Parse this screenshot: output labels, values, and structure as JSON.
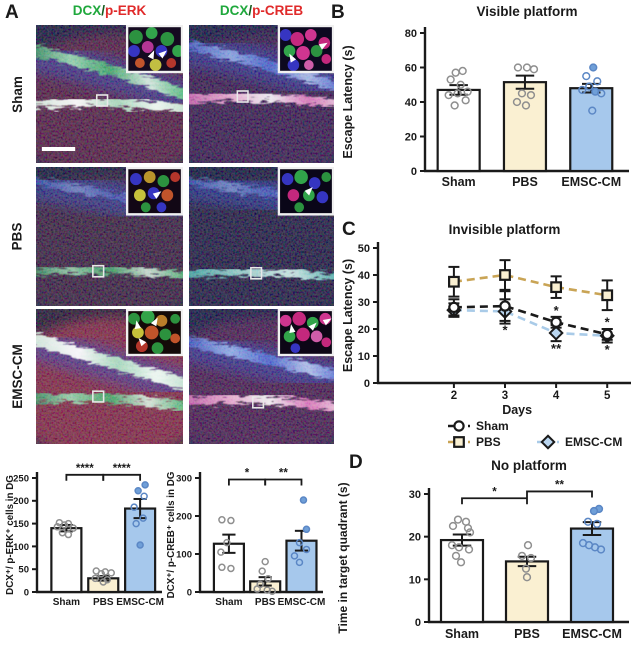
{
  "panel_a": {
    "label": "A",
    "columns": [
      {
        "green": "DCX",
        "slash": "/",
        "red": "p-ERK"
      },
      {
        "green": "DCX",
        "slash": "/",
        "red": "p-CREB"
      }
    ],
    "rows": [
      "Sham",
      "PBS",
      "EMSC-CM"
    ],
    "tiles": [
      {
        "id": "micrograph-sham-dcx-perk"
      },
      {
        "id": "micrograph-sham-dcx-pcreb"
      },
      {
        "id": "micrograph-pbs-dcx-perk"
      },
      {
        "id": "micrograph-pbs-dcx-pcreb"
      },
      {
        "id": "micrograph-emsccm-dcx-perk"
      },
      {
        "id": "micrograph-emsccm-dcx-pcreb"
      }
    ],
    "stain_colors": {
      "dcx_green": "#1FA83C",
      "stain_red": "#E02A2A"
    }
  },
  "panel_labels": {
    "b": "B",
    "c": "C",
    "d": "D"
  },
  "palette": {
    "sham_bar": "#FFFFFF",
    "pbs_bar": "#FAF0D2",
    "emsc_bar": "#A6C8EC",
    "gray_dot": "#8f8f8f",
    "blue_dot": "#5b87c5",
    "pbs_line": "#C9A455",
    "emsc_line": "#A9CBE8",
    "black": "#1a1a1a"
  },
  "chart_data": [
    {
      "id": "visible_platform",
      "type": "bar",
      "title": "Visible platform",
      "ylabel": "Escape Latency (s)",
      "ylim": [
        0,
        80
      ],
      "yticks": [
        0,
        20,
        40,
        60,
        80
      ],
      "categories": [
        "Sham",
        "PBS",
        "EMSC-CM"
      ],
      "values": [
        47,
        51.5,
        48
      ],
      "errors": [
        2.8,
        3.8,
        2.5
      ],
      "bar_colors": [
        "#FFFFFF",
        "#FAF0D2",
        "#A6C8EC"
      ],
      "dot_colors": [
        "#8f8f8f",
        "#8f8f8f",
        "#5b87c5"
      ],
      "dots": [
        [
          [
            58,
            4
          ],
          [
            57,
            -3
          ],
          [
            53,
            -8
          ],
          [
            50,
            2
          ],
          [
            46,
            9
          ],
          [
            45,
            -1
          ],
          [
            44,
            -10
          ],
          [
            41,
            7
          ],
          [
            38,
            -4
          ]
        ],
        [
          [
            60,
            -7
          ],
          [
            60,
            2
          ],
          [
            59,
            9
          ],
          [
            45,
            -3
          ],
          [
            44,
            6
          ],
          [
            40,
            -8
          ],
          [
            38,
            1
          ]
        ],
        [
          [
            60,
            2,
            1
          ],
          [
            55,
            -5
          ],
          [
            52,
            6
          ],
          [
            49,
            -2
          ],
          [
            47,
            -9
          ],
          [
            46,
            4,
            1
          ],
          [
            45,
            10
          ],
          [
            35,
            1
          ]
        ]
      ],
      "sig": []
    },
    {
      "id": "invisible_platform",
      "type": "line",
      "title": "Invisible platform",
      "xlabel": "Days",
      "ylabel": "Escape Latency (s)",
      "x": [
        2,
        3,
        4,
        5
      ],
      "ylim": [
        0,
        50
      ],
      "yticks": [
        0,
        10,
        20,
        30,
        40,
        50
      ],
      "series": [
        {
          "name": "Sham",
          "marker": "circle",
          "color": "#1a1a1a",
          "marker_fill": "#FFFFFF",
          "values": [
            28,
            28.5,
            22.5,
            18
          ],
          "errors": [
            3,
            5.5,
            2,
            2
          ]
        },
        {
          "name": "PBS",
          "marker": "square",
          "color": "#C9A455",
          "marker_fill": "#FAF0D2",
          "values": [
            37.5,
            40,
            35.5,
            32.5
          ],
          "errors": [
            5.5,
            5.5,
            4,
            5.5
          ]
        },
        {
          "name": "EMSC-CM",
          "marker": "diamond",
          "color": "#A9CBE8",
          "marker_fill": "#B9D5EF",
          "values": [
            27,
            26.5,
            18.5,
            17.5
          ],
          "errors": [
            2.5,
            4.5,
            3,
            2.5
          ]
        }
      ],
      "annotations": [
        {
          "x": 3,
          "y": 19.5,
          "text": "*"
        },
        {
          "x": 4,
          "y": 26.6,
          "text": "*"
        },
        {
          "x": 4,
          "y": 12.6,
          "text": "**"
        },
        {
          "x": 5,
          "y": 22.4,
          "text": "*"
        },
        {
          "x": 5,
          "y": 12.2,
          "text": "*"
        }
      ],
      "legend": [
        "Sham",
        "PBS",
        "EMSC-CM"
      ]
    },
    {
      "id": "no_platform",
      "type": "bar",
      "title": "No platform",
      "ylabel": "Time in target quadrant (s)",
      "ylim": [
        0,
        30
      ],
      "yticks": [
        0,
        10,
        20,
        30
      ],
      "categories": [
        "Sham",
        "PBS",
        "EMSC-CM"
      ],
      "values": [
        19.2,
        14.2,
        21.9
      ],
      "errors": [
        1.3,
        1.1,
        1.5
      ],
      "bar_colors": [
        "#FFFFFF",
        "#FAF0D2",
        "#A6C8EC"
      ],
      "dot_colors": [
        "#8f8f8f",
        "#8f8f8f",
        "#5b87c5"
      ],
      "dots": [
        [
          [
            24,
            -4
          ],
          [
            23.5,
            4
          ],
          [
            22.5,
            -9
          ],
          [
            22,
            6
          ],
          [
            21,
            8
          ],
          [
            18,
            -10
          ],
          [
            17.5,
            -3
          ],
          [
            17,
            7
          ],
          [
            15.5,
            -6
          ],
          [
            14,
            -1
          ]
        ],
        [
          [
            18,
            1
          ],
          [
            15.5,
            -5
          ],
          [
            15,
            4
          ],
          [
            12.5,
            -1
          ],
          [
            10.5,
            0
          ]
        ],
        [
          [
            26.5,
            7,
            1
          ],
          [
            26,
            2,
            1
          ],
          [
            23.5,
            -4
          ],
          [
            23,
            5
          ],
          [
            18.5,
            -9
          ],
          [
            18,
            -3
          ],
          [
            17.5,
            3
          ],
          [
            17,
            9
          ]
        ]
      ],
      "sig": [
        {
          "from": 0,
          "to": 1,
          "label": "*",
          "y": 29
        },
        {
          "from": 1,
          "to": 2,
          "label": "**",
          "y": 30.6
        }
      ]
    },
    {
      "id": "dcx_perk",
      "type": "bar",
      "title": "",
      "ylabel": "DCX⁺/ p-ERK⁺ cells in DG",
      "ylim": [
        0,
        250
      ],
      "yticks": [
        0,
        50,
        100,
        150,
        200,
        250
      ],
      "categories": [
        "Sham",
        "PBS",
        "EMSC-CM"
      ],
      "values": [
        140,
        30,
        183
      ],
      "errors": [
        7,
        5,
        21
      ],
      "bar_colors": [
        "#FFFFFF",
        "#FAF0D2",
        "#A6C8EC"
      ],
      "dot_colors": [
        "#8f8f8f",
        "#8f8f8f",
        "#5b87c5"
      ],
      "dots": [
        [
          [
            152,
            -7
          ],
          [
            150,
            2
          ],
          [
            147,
            -2
          ],
          [
            143,
            -9
          ],
          [
            140,
            7
          ],
          [
            130,
            -4
          ],
          [
            126,
            2
          ]
        ],
        [
          [
            46,
            -7
          ],
          [
            44,
            2
          ],
          [
            42,
            8
          ],
          [
            40,
            -2
          ],
          [
            30,
            -8
          ],
          [
            27,
            4
          ],
          [
            22,
            0
          ]
        ],
        [
          [
            235,
            5,
            1
          ],
          [
            222,
            -2,
            1
          ],
          [
            210,
            4
          ],
          [
            186,
            -6
          ],
          [
            162,
            3
          ],
          [
            150,
            -4
          ],
          [
            103,
            0,
            1
          ]
        ]
      ],
      "sig": [
        {
          "from": 0,
          "to": 1,
          "label": "****",
          "y": 257
        },
        {
          "from": 1,
          "to": 2,
          "label": "****",
          "y": 257
        }
      ]
    },
    {
      "id": "dcx_pcreb",
      "type": "bar",
      "title": "",
      "ylabel": "DCX⁺/ p-CREB⁺ cells in DG",
      "ylim": [
        0,
        300
      ],
      "yticks": [
        0,
        100,
        200,
        300
      ],
      "categories": [
        "Sham",
        "PBS",
        "EMSC-CM"
      ],
      "values": [
        127,
        28,
        135
      ],
      "errors": [
        24,
        11,
        26
      ],
      "bar_colors": [
        "#FFFFFF",
        "#FAF0D2",
        "#A6C8EC"
      ],
      "dot_colors": [
        "#8f8f8f",
        "#8f8f8f",
        "#5b87c5"
      ],
      "dots": [
        [
          [
            190,
            -7
          ],
          [
            188,
            2
          ],
          [
            130,
            -2
          ],
          [
            105,
            -8
          ],
          [
            65,
            -7
          ],
          [
            62,
            2
          ]
        ],
        [
          [
            80,
            0
          ],
          [
            55,
            -3
          ],
          [
            35,
            3
          ],
          [
            20,
            -5
          ],
          [
            8,
            -8
          ],
          [
            5,
            2
          ],
          [
            2,
            7
          ]
        ],
        [
          [
            242,
            2,
            1
          ],
          [
            165,
            5,
            1
          ],
          [
            130,
            -2
          ],
          [
            112,
            5
          ],
          [
            95,
            -7
          ],
          [
            78,
            -2
          ]
        ]
      ],
      "sig": [
        {
          "from": 0,
          "to": 1,
          "label": "*",
          "y": 296
        },
        {
          "from": 1,
          "to": 2,
          "label": "**",
          "y": 296
        }
      ]
    }
  ]
}
